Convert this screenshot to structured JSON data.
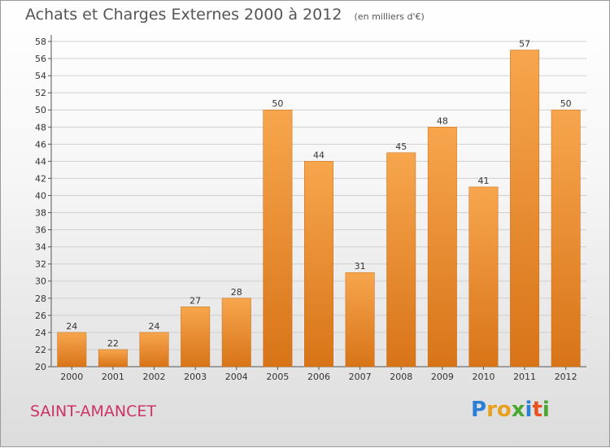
{
  "header": {
    "title": "Achats et Charges Externes 2000 à 2012",
    "subtitle": "(en milliers d'€)"
  },
  "commune": "SAINT-AMANCET",
  "logo": {
    "letters": [
      "P",
      "r",
      "o",
      "x",
      "i",
      "t",
      "i"
    ],
    "colors": [
      "#2b7fd6",
      "#e8a020",
      "#e8a020",
      "#4aa832",
      "#2b7fd6",
      "#e85020",
      "#4aa832"
    ]
  },
  "colors": {
    "bar_top": "#f7a64e",
    "bar_bottom": "#d87418",
    "grid": "#cfcfcf"
  },
  "chart_data": {
    "type": "bar",
    "title": "Achats et Charges Externes 2000 à 2012",
    "subtitle": "(en milliers d'€)",
    "categories": [
      "2000",
      "2001",
      "2002",
      "2003",
      "2004",
      "2005",
      "2006",
      "2007",
      "2008",
      "2009",
      "2010",
      "2011",
      "2012"
    ],
    "values": [
      24,
      22,
      24,
      27,
      28,
      50,
      44,
      31,
      45,
      48,
      41,
      57,
      50
    ],
    "ylim": [
      20,
      58
    ],
    "ytick_step": 2,
    "grid": true,
    "legend": "none"
  }
}
